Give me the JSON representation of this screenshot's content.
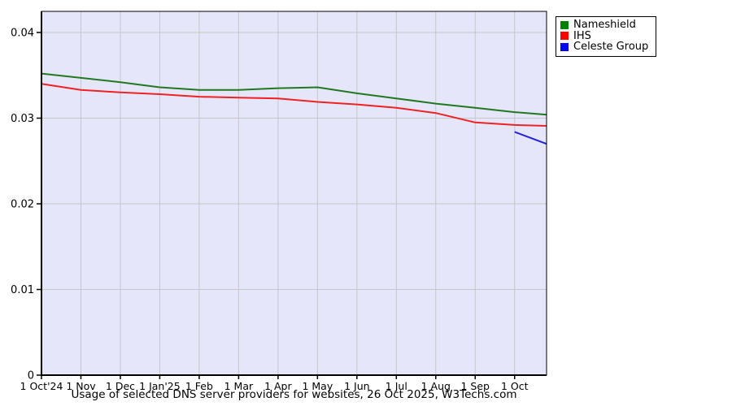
{
  "title": "Usage of selected DNS server providers for websites, 26 Oct 2025, W3Techs.com",
  "legend": {
    "position": "top-right-outside",
    "items": [
      {
        "label": "Nameshield",
        "color": "#008000"
      },
      {
        "label": "IHS",
        "color": "#ff0000"
      },
      {
        "label": "Celeste Group",
        "color": "#0000ff"
      }
    ]
  },
  "chart_data": {
    "type": "line",
    "title": "Usage of selected DNS server providers for websites, 26 Oct 2025, W3Techs.com",
    "plot_bg_color": "#e6e6fa",
    "grid_color": "#c6c6c6",
    "axis_color": "#000000",
    "x_axis": {
      "tick_labels": [
        "1 Oct'24",
        "1 Nov",
        "1 Dec",
        "1 Jan'25",
        "1 Feb",
        "1 Mar",
        "1 Apr",
        "1 May",
        "1 Jun",
        "1 Jul",
        "1 Aug",
        "1 Sep",
        "1 Oct"
      ],
      "tick_indices": [
        0,
        1,
        2,
        3,
        4,
        5,
        6,
        7,
        8,
        9,
        10,
        11,
        12
      ],
      "end_index": 12.81
    },
    "y_axis": {
      "tick_labels": [
        "0",
        "0.01",
        "0.02",
        "0.03",
        "0.04"
      ],
      "tick_values": [
        0,
        0.01,
        0.02,
        0.03,
        0.04
      ],
      "min": 0,
      "max_gridline": 0.04
    },
    "series": [
      {
        "name": "Nameshield",
        "line_color": "#217821",
        "x": [
          0,
          1,
          2,
          3,
          4,
          5,
          6,
          7,
          8,
          9,
          10,
          11,
          12,
          12.81
        ],
        "values": [
          0.0352,
          0.0347,
          0.0342,
          0.0336,
          0.0333,
          0.0333,
          0.0335,
          0.0336,
          0.0329,
          0.0323,
          0.0317,
          0.0312,
          0.0307,
          0.0304
        ]
      },
      {
        "name": "IHS",
        "line_color": "#ee2222",
        "x": [
          0,
          1,
          2,
          3,
          4,
          5,
          6,
          7,
          8,
          9,
          10,
          11,
          12,
          12.81
        ],
        "values": [
          0.034,
          0.0333,
          0.033,
          0.0328,
          0.0325,
          0.0324,
          0.0323,
          0.0319,
          0.0316,
          0.0312,
          0.0306,
          0.0295,
          0.0292,
          0.0291
        ]
      },
      {
        "name": "Celeste Group",
        "line_color": "#2222dd",
        "x": [
          12,
          12.81
        ],
        "values": [
          0.0284,
          0.027
        ]
      }
    ]
  }
}
